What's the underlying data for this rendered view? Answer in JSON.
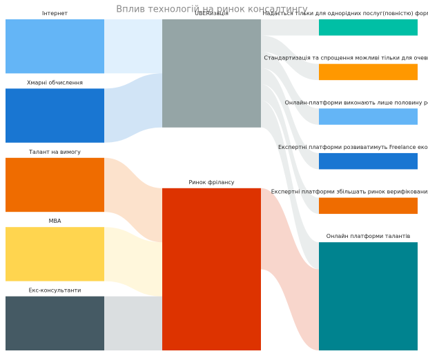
{
  "chart_data": {
    "type": "sankey",
    "title": "Вплив технологій на ринок консалтингу",
    "nodes": [
      {
        "name": "Інтернет",
        "color": "#64b5f6",
        "column": 0
      },
      {
        "name": "Хмарні обчислення",
        "color": "#1976d2",
        "column": 0
      },
      {
        "name": "Талант на вимогу",
        "color": "#ef6c00",
        "column": 0
      },
      {
        "name": "МВА",
        "color": "#ffd54f",
        "column": 0
      },
      {
        "name": "Екс-консультанти",
        "color": "#455a64",
        "column": 0
      },
      {
        "name": "UBERизація",
        "color": "#95a5a6",
        "column": 1
      },
      {
        "name": "Ринок фрілансу",
        "color": "#dd3300",
        "column": 1
      },
      {
        "name": "Надається тільки для однорідних послуг(повністю) форм",
        "color": "#00bfa5",
        "column": 2
      },
      {
        "name": "Стандартизація та спрощення можливі тільки для очеви",
        "color": "#ff9800",
        "column": 2
      },
      {
        "name": "Онлайн-платформи виконають лише половину ро",
        "color": "#64b5f6",
        "column": 2
      },
      {
        "name": "Експертні платформи розвиватимуть Freelance екос",
        "color": "#1976d2",
        "column": 2
      },
      {
        "name": "Експертні платформи збільшать ринок верифікованих",
        "color": "#ef6c00",
        "column": 2
      },
      {
        "name": "Онлайн платформи талантів",
        "color": "#00838f",
        "column": 2
      }
    ],
    "links": [
      {
        "source": 0,
        "target": 5,
        "value": 1
      },
      {
        "source": 1,
        "target": 5,
        "value": 1
      },
      {
        "source": 2,
        "target": 6,
        "value": 1
      },
      {
        "source": 3,
        "target": 6,
        "value": 1
      },
      {
        "source": 4,
        "target": 6,
        "value": 1
      },
      {
        "source": 5,
        "target": 7,
        "value": 0.3
      },
      {
        "source": 5,
        "target": 8,
        "value": 0.3
      },
      {
        "source": 5,
        "target": 9,
        "value": 0.3
      },
      {
        "source": 5,
        "target": 10,
        "value": 0.3
      },
      {
        "source": 5,
        "target": 11,
        "value": 0.3
      },
      {
        "source": 5,
        "target": 12,
        "value": 0.5
      },
      {
        "source": 6,
        "target": 12,
        "value": 1.5
      }
    ]
  }
}
